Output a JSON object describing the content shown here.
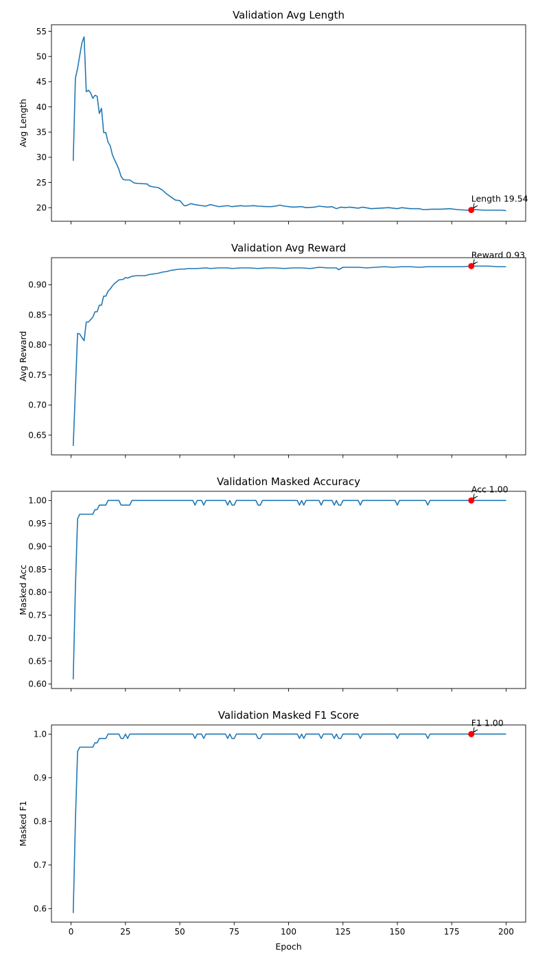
{
  "figure": {
    "xlabel": "Epoch",
    "xticks": [
      0,
      25,
      50,
      75,
      100,
      125,
      150,
      175,
      200
    ],
    "xlim": [
      -9,
      209
    ]
  },
  "colors": {
    "line": "#1f77b4",
    "marker": "#ff0000",
    "axes": "#000000",
    "background": "#ffffff"
  },
  "chart_data": [
    {
      "type": "line",
      "title": "Validation Avg Length",
      "ylabel": "Avg Length",
      "ylim": [
        17.3,
        56.3
      ],
      "yticks": [
        20,
        25,
        30,
        35,
        40,
        45,
        50,
        55
      ],
      "ytick_labels": [
        "20",
        "25",
        "30",
        "35",
        "40",
        "45",
        "50",
        "55"
      ],
      "show_xtick_labels": false,
      "annotation": {
        "text": "Length 19.54",
        "x": 184,
        "y": 19.54
      },
      "points": [
        [
          1,
          29.3
        ],
        [
          2,
          45.7
        ],
        [
          3,
          47.6
        ],
        [
          4,
          50.2
        ],
        [
          5,
          52.7
        ],
        [
          6,
          53.9
        ],
        [
          7,
          43.0
        ],
        [
          8,
          43.3
        ],
        [
          9,
          42.8
        ],
        [
          10,
          41.7
        ],
        [
          11,
          42.3
        ],
        [
          12,
          42.1
        ],
        [
          13,
          38.7
        ],
        [
          14,
          39.7
        ],
        [
          15,
          34.9
        ],
        [
          16,
          34.9
        ],
        [
          17,
          33.0
        ],
        [
          18,
          32.3
        ],
        [
          19,
          30.5
        ],
        [
          20,
          29.5
        ],
        [
          21,
          28.6
        ],
        [
          22,
          27.6
        ],
        [
          23,
          26.2
        ],
        [
          24,
          25.6
        ],
        [
          25,
          25.5
        ],
        [
          27,
          25.5
        ],
        [
          29,
          24.9
        ],
        [
          31,
          24.8
        ],
        [
          35,
          24.7
        ],
        [
          36,
          24.3
        ],
        [
          38,
          24.1
        ],
        [
          40,
          24.0
        ],
        [
          42,
          23.5
        ],
        [
          44,
          22.7
        ],
        [
          46,
          22.1
        ],
        [
          48,
          21.5
        ],
        [
          50,
          21.4
        ],
        [
          52,
          20.4
        ],
        [
          53,
          20.4
        ],
        [
          55,
          20.8
        ],
        [
          57,
          20.6
        ],
        [
          60,
          20.4
        ],
        [
          62,
          20.3
        ],
        [
          64,
          20.6
        ],
        [
          66,
          20.4
        ],
        [
          68,
          20.2
        ],
        [
          70,
          20.3
        ],
        [
          72,
          20.4
        ],
        [
          74,
          20.2
        ],
        [
          78,
          20.4
        ],
        [
          80,
          20.3
        ],
        [
          84,
          20.4
        ],
        [
          86,
          20.3
        ],
        [
          90,
          20.2
        ],
        [
          92,
          20.2
        ],
        [
          94,
          20.3
        ],
        [
          96,
          20.5
        ],
        [
          98,
          20.3
        ],
        [
          102,
          20.1
        ],
        [
          106,
          20.2
        ],
        [
          108,
          20.0
        ],
        [
          112,
          20.1
        ],
        [
          114,
          20.3
        ],
        [
          118,
          20.1
        ],
        [
          120,
          20.2
        ],
        [
          122,
          19.8
        ],
        [
          124,
          20.1
        ],
        [
          126,
          20.0
        ],
        [
          128,
          20.1
        ],
        [
          132,
          19.9
        ],
        [
          134,
          20.1
        ],
        [
          138,
          19.8
        ],
        [
          142,
          19.9
        ],
        [
          146,
          20.0
        ],
        [
          150,
          19.8
        ],
        [
          152,
          20.0
        ],
        [
          156,
          19.8
        ],
        [
          160,
          19.8
        ],
        [
          162,
          19.6
        ],
        [
          166,
          19.7
        ],
        [
          170,
          19.7
        ],
        [
          174,
          19.8
        ],
        [
          178,
          19.6
        ],
        [
          182,
          19.5
        ],
        [
          184,
          19.54
        ],
        [
          186,
          19.6
        ],
        [
          190,
          19.5
        ],
        [
          194,
          19.5
        ],
        [
          198,
          19.5
        ],
        [
          200,
          19.4
        ]
      ]
    },
    {
      "type": "line",
      "title": "Validation Avg Reward",
      "ylabel": "Avg Reward",
      "ylim": [
        0.617,
        0.945
      ],
      "yticks": [
        0.65,
        0.7,
        0.75,
        0.8,
        0.85,
        0.9
      ],
      "ytick_labels": [
        "0.65",
        "0.70",
        "0.75",
        "0.80",
        "0.85",
        "0.90"
      ],
      "show_xtick_labels": false,
      "annotation": {
        "text": "Reward 0.93",
        "x": 184,
        "y": 0.931
      },
      "points": [
        [
          1,
          0.632
        ],
        [
          2,
          0.725
        ],
        [
          3,
          0.819
        ],
        [
          4,
          0.818
        ],
        [
          5,
          0.812
        ],
        [
          6,
          0.807
        ],
        [
          7,
          0.838
        ],
        [
          8,
          0.838
        ],
        [
          9,
          0.842
        ],
        [
          10,
          0.846
        ],
        [
          11,
          0.855
        ],
        [
          12,
          0.855
        ],
        [
          13,
          0.866
        ],
        [
          14,
          0.866
        ],
        [
          15,
          0.881
        ],
        [
          16,
          0.881
        ],
        [
          17,
          0.889
        ],
        [
          18,
          0.893
        ],
        [
          19,
          0.898
        ],
        [
          20,
          0.902
        ],
        [
          21,
          0.905
        ],
        [
          22,
          0.908
        ],
        [
          24,
          0.909
        ],
        [
          25,
          0.912
        ],
        [
          26,
          0.911
        ],
        [
          28,
          0.914
        ],
        [
          30,
          0.915
        ],
        [
          32,
          0.915
        ],
        [
          34,
          0.915
        ],
        [
          36,
          0.917
        ],
        [
          38,
          0.918
        ],
        [
          40,
          0.919
        ],
        [
          42,
          0.921
        ],
        [
          44,
          0.922
        ],
        [
          46,
          0.924
        ],
        [
          48,
          0.925
        ],
        [
          50,
          0.926
        ],
        [
          52,
          0.926
        ],
        [
          54,
          0.927
        ],
        [
          56,
          0.927
        ],
        [
          58,
          0.927
        ],
        [
          62,
          0.928
        ],
        [
          64,
          0.927
        ],
        [
          68,
          0.928
        ],
        [
          72,
          0.928
        ],
        [
          74,
          0.927
        ],
        [
          78,
          0.928
        ],
        [
          82,
          0.928
        ],
        [
          86,
          0.927
        ],
        [
          90,
          0.928
        ],
        [
          94,
          0.928
        ],
        [
          98,
          0.927
        ],
        [
          102,
          0.928
        ],
        [
          106,
          0.928
        ],
        [
          110,
          0.927
        ],
        [
          114,
          0.929
        ],
        [
          118,
          0.928
        ],
        [
          122,
          0.928
        ],
        [
          123,
          0.925
        ],
        [
          125,
          0.929
        ],
        [
          128,
          0.929
        ],
        [
          132,
          0.929
        ],
        [
          136,
          0.928
        ],
        [
          140,
          0.929
        ],
        [
          144,
          0.93
        ],
        [
          148,
          0.929
        ],
        [
          152,
          0.93
        ],
        [
          156,
          0.93
        ],
        [
          160,
          0.929
        ],
        [
          164,
          0.93
        ],
        [
          168,
          0.93
        ],
        [
          172,
          0.93
        ],
        [
          176,
          0.93
        ],
        [
          180,
          0.93
        ],
        [
          184,
          0.931
        ],
        [
          188,
          0.931
        ],
        [
          192,
          0.931
        ],
        [
          196,
          0.93
        ],
        [
          200,
          0.93
        ]
      ]
    },
    {
      "type": "line",
      "title": "Validation Masked Accuracy",
      "ylabel": "Masked Acc",
      "ylim": [
        0.59,
        1.02
      ],
      "yticks": [
        0.6,
        0.65,
        0.7,
        0.75,
        0.8,
        0.85,
        0.9,
        0.95,
        1.0
      ],
      "ytick_labels": [
        "0.60",
        "0.65",
        "0.70",
        "0.75",
        "0.80",
        "0.85",
        "0.90",
        "0.95",
        "1.00"
      ],
      "show_xtick_labels": false,
      "annotation": {
        "text": "Acc 1.00",
        "x": 184,
        "y": 1.0
      },
      "points": [
        [
          1,
          0.61
        ],
        [
          2,
          0.81
        ],
        [
          3,
          0.96
        ],
        [
          4,
          0.97
        ],
        [
          5,
          0.97
        ],
        [
          10,
          0.97
        ],
        [
          11,
          0.98
        ],
        [
          12,
          0.98
        ],
        [
          13,
          0.99
        ],
        [
          16,
          0.99
        ],
        [
          17,
          1.0
        ],
        [
          22,
          1.0
        ],
        [
          23,
          0.99
        ],
        [
          27,
          0.99
        ],
        [
          28,
          1.0
        ],
        [
          56,
          1.0
        ],
        [
          57,
          0.99
        ],
        [
          58,
          1.0
        ],
        [
          60,
          1.0
        ],
        [
          61,
          0.99
        ],
        [
          62,
          1.0
        ],
        [
          71,
          1.0
        ],
        [
          72,
          0.99
        ],
        [
          73,
          1.0
        ],
        [
          74,
          0.99
        ],
        [
          75,
          0.99
        ],
        [
          76,
          1.0
        ],
        [
          85,
          1.0
        ],
        [
          86,
          0.99
        ],
        [
          87,
          0.99
        ],
        [
          88,
          1.0
        ],
        [
          104,
          1.0
        ],
        [
          105,
          0.99
        ],
        [
          106,
          1.0
        ],
        [
          107,
          0.99
        ],
        [
          108,
          1.0
        ],
        [
          114,
          1.0
        ],
        [
          115,
          0.99
        ],
        [
          116,
          1.0
        ],
        [
          120,
          1.0
        ],
        [
          121,
          0.99
        ],
        [
          122,
          1.0
        ],
        [
          123,
          0.99
        ],
        [
          124,
          0.99
        ],
        [
          125,
          1.0
        ],
        [
          132,
          1.0
        ],
        [
          133,
          0.99
        ],
        [
          134,
          1.0
        ],
        [
          149,
          1.0
        ],
        [
          150,
          0.99
        ],
        [
          151,
          1.0
        ],
        [
          163,
          1.0
        ],
        [
          164,
          0.99
        ],
        [
          165,
          1.0
        ],
        [
          200,
          1.0
        ]
      ]
    },
    {
      "type": "line",
      "title": "Validation Masked F1 Score",
      "ylabel": "Masked F1",
      "ylim": [
        0.569,
        1.021
      ],
      "yticks": [
        0.6,
        0.7,
        0.8,
        0.9,
        1.0
      ],
      "ytick_labels": [
        "0.6",
        "0.7",
        "0.8",
        "0.9",
        "1.0"
      ],
      "show_xtick_labels": true,
      "annotation": {
        "text": "F1 1.00",
        "x": 184,
        "y": 1.0
      },
      "points": [
        [
          1,
          0.59
        ],
        [
          2,
          0.8
        ],
        [
          3,
          0.96
        ],
        [
          4,
          0.97
        ],
        [
          5,
          0.97
        ],
        [
          10,
          0.97
        ],
        [
          11,
          0.98
        ],
        [
          12,
          0.98
        ],
        [
          13,
          0.99
        ],
        [
          16,
          0.99
        ],
        [
          17,
          1.0
        ],
        [
          22,
          1.0
        ],
        [
          23,
          0.99
        ],
        [
          24,
          0.99
        ],
        [
          25,
          1.0
        ],
        [
          26,
          0.99
        ],
        [
          27,
          1.0
        ],
        [
          56,
          1.0
        ],
        [
          57,
          0.99
        ],
        [
          58,
          1.0
        ],
        [
          60,
          1.0
        ],
        [
          61,
          0.99
        ],
        [
          62,
          1.0
        ],
        [
          71,
          1.0
        ],
        [
          72,
          0.99
        ],
        [
          73,
          1.0
        ],
        [
          74,
          0.99
        ],
        [
          75,
          0.99
        ],
        [
          76,
          1.0
        ],
        [
          85,
          1.0
        ],
        [
          86,
          0.99
        ],
        [
          87,
          0.99
        ],
        [
          88,
          1.0
        ],
        [
          104,
          1.0
        ],
        [
          105,
          0.99
        ],
        [
          106,
          1.0
        ],
        [
          107,
          0.99
        ],
        [
          108,
          1.0
        ],
        [
          114,
          1.0
        ],
        [
          115,
          0.99
        ],
        [
          116,
          1.0
        ],
        [
          120,
          1.0
        ],
        [
          121,
          0.99
        ],
        [
          122,
          1.0
        ],
        [
          123,
          0.99
        ],
        [
          124,
          0.99
        ],
        [
          125,
          1.0
        ],
        [
          132,
          1.0
        ],
        [
          133,
          0.99
        ],
        [
          134,
          1.0
        ],
        [
          149,
          1.0
        ],
        [
          150,
          0.99
        ],
        [
          151,
          1.0
        ],
        [
          163,
          1.0
        ],
        [
          164,
          0.99
        ],
        [
          165,
          1.0
        ],
        [
          200,
          1.0
        ]
      ]
    }
  ]
}
